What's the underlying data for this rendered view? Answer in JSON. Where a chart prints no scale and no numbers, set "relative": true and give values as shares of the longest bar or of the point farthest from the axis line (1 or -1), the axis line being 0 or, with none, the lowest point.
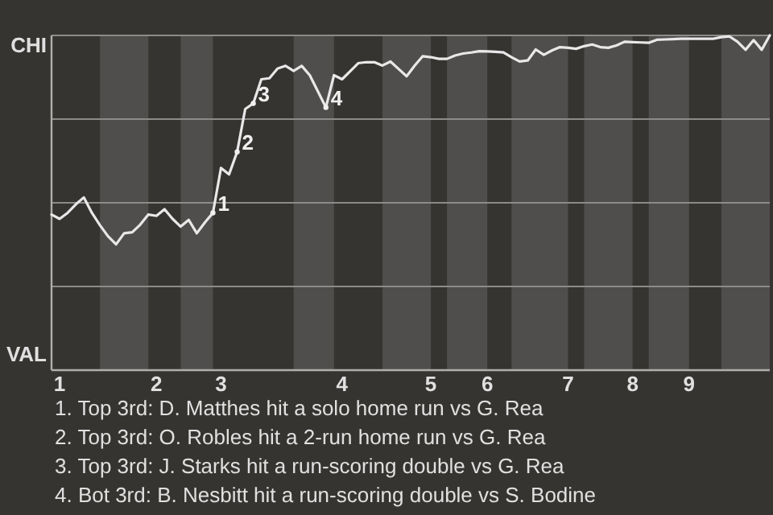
{
  "chart_data": {
    "type": "line",
    "relative": true,
    "grid": "y",
    "marker": "none",
    "line_style": "solid",
    "categories": [
      null,
      "1",
      null,
      null,
      null,
      null,
      null,
      null,
      null,
      null,
      null,
      null,
      null,
      "2",
      null,
      null,
      null,
      null,
      null,
      null,
      null,
      "3",
      null,
      null,
      null,
      null,
      null,
      null,
      null,
      null,
      null,
      null,
      null,
      null,
      null,
      null,
      "4",
      null,
      null,
      null,
      null,
      null,
      null,
      null,
      null,
      null,
      null,
      "5",
      null,
      null,
      null,
      null,
      null,
      null,
      "6",
      null,
      null,
      null,
      null,
      null,
      null,
      null,
      null,
      null,
      "7",
      null,
      null,
      null,
      null,
      null,
      null,
      null,
      "8",
      null,
      null,
      null,
      null,
      null,
      null,
      "9",
      null,
      null,
      null,
      null,
      null,
      null,
      null,
      null,
      null,
      null
    ],
    "series": [
      {
        "color": "#e8e8e8",
        "values": [
          0.465,
          0.452,
          0.47,
          0.495,
          0.516,
          0.47,
          0.433,
          0.4,
          0.376,
          0.409,
          0.412,
          0.435,
          0.465,
          0.461,
          0.481,
          0.452,
          0.429,
          0.449,
          0.409,
          0.441,
          0.47,
          0.604,
          0.585,
          0.652,
          0.78,
          0.797,
          0.869,
          0.872,
          0.901,
          0.909,
          0.894,
          0.909,
          0.881,
          0.833,
          0.785,
          0.881,
          0.869,
          0.893,
          0.917,
          0.92,
          0.92,
          0.91,
          0.922,
          0.9,
          0.878,
          0.91,
          0.938,
          0.935,
          0.93,
          0.93,
          0.94,
          0.946,
          0.949,
          0.953,
          0.952,
          0.951,
          0.949,
          0.935,
          0.922,
          0.925,
          0.958,
          0.942,
          0.955,
          0.965,
          0.963,
          0.96,
          0.968,
          0.973,
          0.965,
          0.963,
          0.97,
          0.981,
          0.98,
          0.979,
          0.978,
          0.987,
          0.988,
          0.989,
          0.99,
          0.99,
          0.99,
          0.99,
          0.99,
          0.995,
          0.997,
          0.981,
          0.957,
          0.986,
          0.957,
          1
        ]
      },
      {
        "type": "scatter",
        "name": "1",
        "marker": "circle",
        "color": "#f0f0f0",
        "values": [
          null,
          null,
          null,
          null,
          null,
          null,
          null,
          null,
          null,
          null,
          null,
          null,
          null,
          null,
          null,
          null,
          null,
          null,
          null,
          null,
          0.47,
          null,
          null,
          null,
          null,
          null,
          null,
          null,
          null,
          null,
          null,
          null,
          null,
          null,
          null,
          null,
          null,
          null,
          null,
          null,
          null,
          null,
          null,
          null,
          null,
          null,
          null,
          null,
          null,
          null,
          null,
          null,
          null,
          null,
          null,
          null,
          null,
          null,
          null,
          null,
          null,
          null,
          null,
          null,
          null,
          null,
          null,
          null,
          null,
          null,
          null,
          null,
          null,
          null,
          null,
          null,
          null,
          null,
          null,
          null,
          null,
          null,
          null,
          null,
          null,
          null,
          null,
          null,
          null,
          null
        ]
      },
      {
        "type": "scatter",
        "name": "2",
        "marker": "circle",
        "color": "#f0f0f0",
        "values": [
          null,
          null,
          null,
          null,
          null,
          null,
          null,
          null,
          null,
          null,
          null,
          null,
          null,
          null,
          null,
          null,
          null,
          null,
          null,
          null,
          null,
          null,
          null,
          0.652,
          null,
          null,
          null,
          null,
          null,
          null,
          null,
          null,
          null,
          null,
          null,
          null,
          null,
          null,
          null,
          null,
          null,
          null,
          null,
          null,
          null,
          null,
          null,
          null,
          null,
          null,
          null,
          null,
          null,
          null,
          null,
          null,
          null,
          null,
          null,
          null,
          null,
          null,
          null,
          null,
          null,
          null,
          null,
          null,
          null,
          null,
          null,
          null,
          null,
          null,
          null,
          null,
          null,
          null,
          null,
          null,
          null,
          null,
          null,
          null,
          null,
          null,
          null,
          null,
          null,
          null
        ]
      },
      {
        "type": "scatter",
        "name": "3",
        "marker": "circle",
        "color": "#f0f0f0",
        "values": [
          null,
          null,
          null,
          null,
          null,
          null,
          null,
          null,
          null,
          null,
          null,
          null,
          null,
          null,
          null,
          null,
          null,
          null,
          null,
          null,
          null,
          null,
          null,
          null,
          null,
          0.797,
          null,
          null,
          null,
          null,
          null,
          null,
          null,
          null,
          null,
          null,
          null,
          null,
          null,
          null,
          null,
          null,
          null,
          null,
          null,
          null,
          null,
          null,
          null,
          null,
          null,
          null,
          null,
          null,
          null,
          null,
          null,
          null,
          null,
          null,
          null,
          null,
          null,
          null,
          null,
          null,
          null,
          null,
          null,
          null,
          null,
          null,
          null,
          null,
          null,
          null,
          null,
          null,
          null,
          null,
          null,
          null,
          null,
          null,
          null,
          null,
          null,
          null,
          null,
          null
        ]
      },
      {
        "type": "scatter",
        "name": "4",
        "marker": "circle",
        "color": "#f0f0f0",
        "values": [
          null,
          null,
          null,
          null,
          null,
          null,
          null,
          null,
          null,
          null,
          null,
          null,
          null,
          null,
          null,
          null,
          null,
          null,
          null,
          null,
          null,
          null,
          null,
          null,
          null,
          null,
          null,
          null,
          null,
          null,
          null,
          null,
          null,
          null,
          0.785,
          null,
          null,
          null,
          null,
          null,
          null,
          null,
          null,
          null,
          null,
          null,
          null,
          null,
          null,
          null,
          null,
          null,
          null,
          null,
          null,
          null,
          null,
          null,
          null,
          null,
          null,
          null,
          null,
          null,
          null,
          null,
          null,
          null,
          null,
          null,
          null,
          null,
          null,
          null,
          null,
          null,
          null,
          null,
          null,
          null,
          null,
          null,
          null,
          null,
          null,
          null,
          null,
          null,
          null,
          null
        ]
      }
    ],
    "annotations": [
      "CHI",
      "VAL",
      "1. Top 3rd: D. Matthes hit a solo home run vs G. Rea",
      "2. Top 3rd: O. Robles hit a 2-run home run vs G. Rea",
      "3. Top 3rd: J. Starks hit a run-scoring double vs G. Rea",
      "4. Bot 3rd: B. Nesbitt hit a run-scoring double vs S. Bodine"
    ]
  }
}
